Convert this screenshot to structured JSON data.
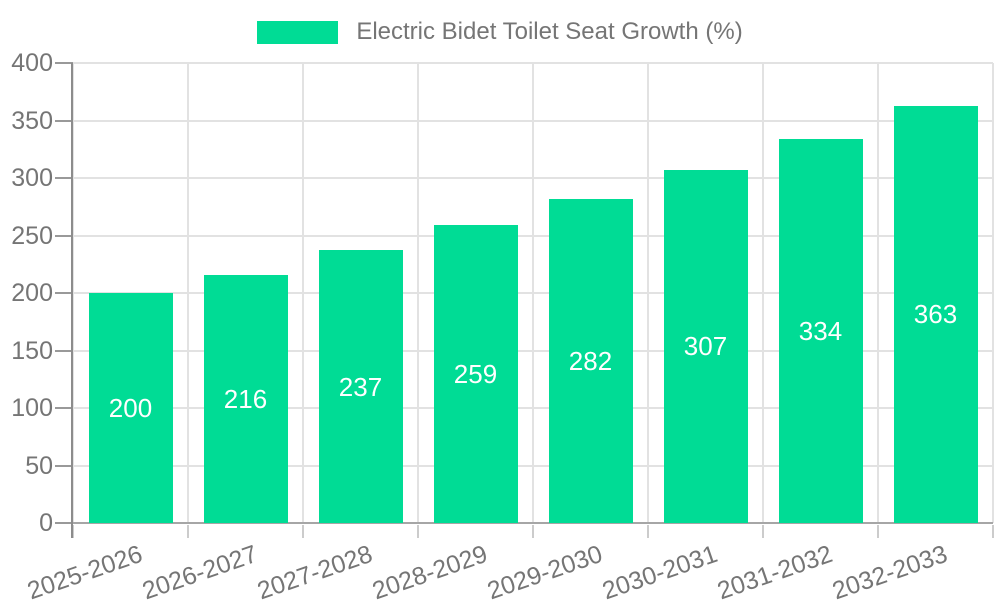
{
  "legend": {
    "label": "Electric Bidet Toilet Seat Growth (%)"
  },
  "colors": {
    "bar": "#00DC95",
    "axis_text": "#757575",
    "value_label": "#ffffff",
    "grid": "#e2e2e2",
    "axis_line": "#8c8c8c",
    "baseline": "#a6a6a6",
    "y_tick": "#999999",
    "x_tick": "#cccccc",
    "background": "#ffffff"
  },
  "chart_data": {
    "type": "bar",
    "title": "Electric Bidet Toilet Seat Growth (%)",
    "categories": [
      "2025-2026",
      "2026-2027",
      "2027-2028",
      "2028-2029",
      "2029-2030",
      "2030-2031",
      "2031-2032",
      "2032-2033"
    ],
    "values": [
      200,
      216,
      237,
      259,
      282,
      307,
      334,
      363
    ],
    "xlabel": "",
    "ylabel": "",
    "ylim": [
      0,
      400
    ],
    "ytick_step": 50,
    "yticks": [
      0,
      50,
      100,
      150,
      200,
      250,
      300,
      350,
      400
    ],
    "grid": true,
    "legend_position": "top-center",
    "value_labels": "inside-center",
    "x_label_rotation_deg": -19
  }
}
